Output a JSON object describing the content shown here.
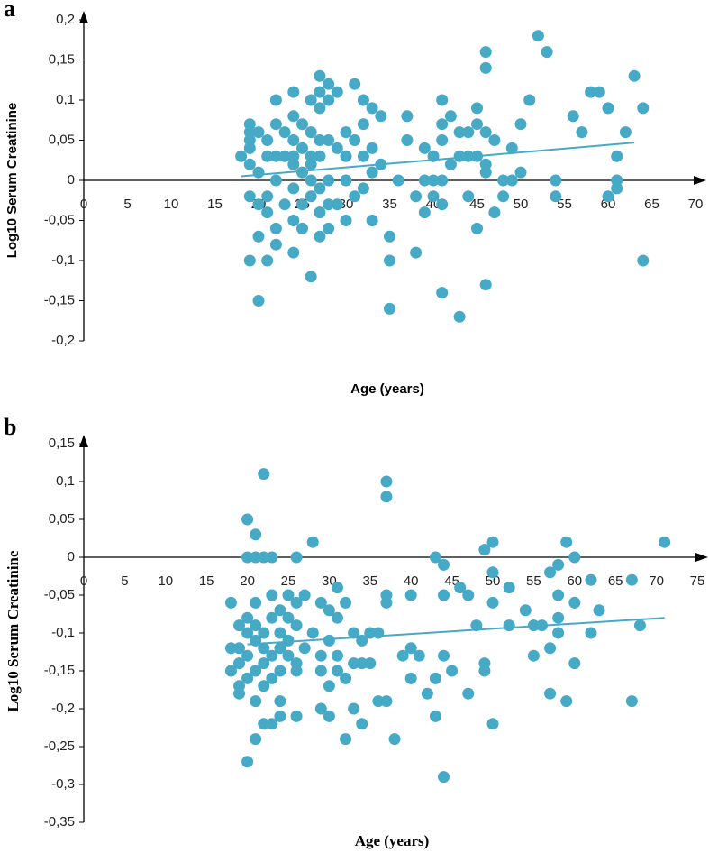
{
  "chart_data": [
    {
      "type": "scatter",
      "panel_label": "a",
      "x_label": "Age (years)",
      "y_label": "Log10 Serum Creatinine",
      "color": "#46a9c6",
      "x": [
        18,
        19,
        19,
        19,
        19,
        19,
        19,
        19,
        20,
        20,
        20,
        20,
        20,
        21,
        21,
        21,
        21,
        21,
        22,
        22,
        22,
        22,
        22,
        22,
        23,
        23,
        23,
        24,
        24,
        24,
        24,
        24,
        24,
        24,
        24,
        25,
        25,
        25,
        25,
        25,
        26,
        26,
        26,
        26,
        26,
        26,
        26,
        27,
        27,
        27,
        27,
        27,
        27,
        27,
        27,
        28,
        28,
        28,
        28,
        28,
        28,
        29,
        29,
        29,
        30,
        30,
        30,
        30,
        31,
        31,
        31,
        32,
        32,
        32,
        32,
        33,
        33,
        33,
        33,
        34,
        34,
        35,
        35,
        35,
        36,
        37,
        37,
        38,
        38,
        39,
        39,
        39,
        40,
        40,
        40,
        41,
        41,
        41,
        41,
        41,
        41,
        42,
        42,
        43,
        43,
        43,
        44,
        44,
        44,
        45,
        45,
        45,
        45,
        46,
        46,
        46,
        46,
        46,
        46,
        47,
        47,
        48,
        48,
        49,
        49,
        50,
        50,
        51,
        52,
        53,
        54,
        54,
        56,
        57,
        58,
        59,
        60,
        60,
        61,
        61,
        61,
        62,
        63,
        64,
        64
      ],
      "values": [
        0.03,
        0.07,
        0.06,
        0.05,
        0.04,
        0.02,
        -0.02,
        -0.1,
        0.06,
        0.01,
        -0.03,
        -0.07,
        -0.15,
        0.05,
        0.03,
        -0.02,
        -0.04,
        -0.1,
        0.1,
        0.07,
        0.03,
        0,
        -0.06,
        -0.08,
        0.06,
        0.03,
        -0.03,
        0.11,
        0.08,
        0.05,
        0.03,
        0.02,
        -0.01,
        -0.05,
        -0.09,
        0.07,
        0.04,
        0.01,
        -0.03,
        -0.06,
        0.1,
        0.06,
        0.03,
        0.02,
        0,
        -0.02,
        -0.12,
        0.13,
        0.11,
        0.09,
        0.05,
        0.03,
        -0.01,
        -0.04,
        -0.07,
        0.12,
        0.1,
        0.05,
        0,
        -0.03,
        -0.06,
        0.11,
        0.04,
        -0.03,
        0.06,
        0.03,
        0,
        -0.05,
        0.12,
        0.05,
        -0.02,
        0.1,
        0.07,
        0.03,
        -0.01,
        0.09,
        0.04,
        0.01,
        -0.05,
        0.08,
        0.02,
        -0.07,
        -0.1,
        -0.16,
        0,
        0.08,
        0.05,
        -0.02,
        -0.09,
        0.04,
        0,
        -0.04,
        0.03,
        0,
        -0.02,
        0.1,
        0.07,
        0.05,
        0,
        -0.03,
        -0.14,
        0.08,
        0.02,
        -0.17,
        0.06,
        0.03,
        0.06,
        0.03,
        -0.02,
        0.09,
        0.07,
        0.03,
        -0.06,
        0.16,
        0.14,
        0.06,
        0.02,
        0.01,
        -0.13,
        0.05,
        -0.04,
        0,
        -0.02,
        0.04,
        0,
        0.07,
        0.01,
        0.1,
        0.18,
        0.16,
        0,
        -0.02,
        0.08,
        0.06,
        0.11,
        0.11,
        0.09,
        -0.02,
        0.03,
        0,
        -0.01,
        0.06,
        0.13,
        0.09,
        -0.1
      ],
      "trendline": {
        "x": [
          18,
          63
        ],
        "y": [
          0.005,
          0.047
        ]
      },
      "xlim": [
        0,
        70
      ],
      "ylim": [
        -0.2,
        0.2
      ],
      "xticks": [
        0,
        5,
        10,
        15,
        20,
        25,
        30,
        35,
        40,
        45,
        50,
        55,
        60,
        65,
        70
      ],
      "yticks": [
        {
          "value": 0.2,
          "label": "0,2"
        },
        {
          "value": 0.15,
          "label": "0,15"
        },
        {
          "value": 0.1,
          "label": "0,1"
        },
        {
          "value": 0.05,
          "label": "0,05"
        },
        0,
        {
          "value": -0.05,
          "label": "-0,05"
        },
        {
          "value": -0.1,
          "label": "-0,1"
        },
        {
          "value": -0.15,
          "label": "-0,15"
        },
        {
          "value": -0.2,
          "label": "-0,2"
        }
      ]
    },
    {
      "type": "scatter",
      "panel_label": "b",
      "x_label": "Age (years)",
      "y_label": "Log10 Serum Creatinine",
      "color": "#46a9c6",
      "x": [
        18,
        18,
        18,
        19,
        19,
        19,
        19,
        19,
        20,
        20,
        20,
        20,
        20,
        20,
        20,
        21,
        21,
        21,
        21,
        21,
        21,
        21,
        21,
        22,
        22,
        22,
        22,
        22,
        22,
        22,
        23,
        23,
        23,
        23,
        23,
        23,
        24,
        24,
        24,
        24,
        24,
        24,
        25,
        25,
        25,
        25,
        26,
        26,
        26,
        26,
        26,
        26,
        27,
        27,
        28,
        28,
        29,
        29,
        29,
        29,
        30,
        30,
        30,
        30,
        31,
        31,
        31,
        31,
        32,
        32,
        32,
        33,
        33,
        33,
        34,
        34,
        34,
        35,
        35,
        36,
        36,
        37,
        37,
        37,
        37,
        37,
        38,
        39,
        40,
        40,
        40,
        41,
        42,
        43,
        43,
        43,
        44,
        44,
        44,
        44,
        45,
        46,
        47,
        47,
        48,
        49,
        49,
        49,
        50,
        50,
        50,
        50,
        52,
        52,
        54,
        55,
        55,
        56,
        57,
        57,
        57,
        58,
        58,
        58,
        58,
        59,
        59,
        60,
        60,
        60,
        62,
        62,
        63,
        67,
        67,
        68,
        71
      ],
      "values": [
        -0.06,
        -0.12,
        -0.15,
        -0.09,
        -0.12,
        -0.14,
        -0.17,
        -0.18,
        -0.08,
        -0.1,
        -0.13,
        -0.16,
        0.05,
        0,
        -0.27,
        -0.06,
        -0.09,
        -0.11,
        -0.15,
        -0.19,
        0.03,
        0,
        -0.24,
        -0.1,
        -0.12,
        -0.14,
        -0.17,
        0.11,
        0,
        -0.22,
        -0.05,
        -0.08,
        -0.13,
        -0.16,
        0,
        -0.22,
        -0.07,
        -0.1,
        -0.12,
        -0.15,
        -0.19,
        -0.21,
        -0.05,
        -0.08,
        -0.11,
        -0.13,
        -0.06,
        -0.09,
        -0.14,
        -0.15,
        0,
        -0.21,
        -0.05,
        -0.12,
        -0.1,
        0.02,
        -0.06,
        -0.13,
        -0.15,
        -0.2,
        -0.07,
        -0.11,
        -0.17,
        -0.21,
        -0.04,
        -0.08,
        -0.13,
        -0.15,
        -0.06,
        -0.16,
        -0.24,
        -0.1,
        -0.14,
        -0.2,
        -0.11,
        -0.14,
        -0.22,
        -0.1,
        -0.14,
        -0.1,
        -0.19,
        0.1,
        0.08,
        -0.05,
        -0.06,
        -0.19,
        -0.24,
        -0.13,
        -0.05,
        -0.12,
        -0.16,
        -0.13,
        -0.18,
        0,
        -0.16,
        -0.21,
        -0.01,
        -0.05,
        -0.13,
        -0.29,
        -0.15,
        -0.04,
        -0.18,
        -0.05,
        -0.09,
        0.01,
        -0.14,
        -0.15,
        0.02,
        -0.02,
        -0.06,
        -0.22,
        -0.04,
        -0.09,
        -0.07,
        -0.09,
        -0.13,
        -0.09,
        -0.02,
        -0.12,
        -0.18,
        -0.01,
        -0.05,
        -0.08,
        -0.1,
        0.02,
        -0.19,
        0,
        -0.06,
        -0.14,
        -0.03,
        -0.1,
        -0.07,
        -0.03,
        -0.19,
        -0.09,
        0.02
      ],
      "trendline": {
        "x": [
          20,
          71
        ],
        "y": [
          -0.115,
          -0.08
        ]
      },
      "xlim": [
        0,
        75
      ],
      "ylim": [
        -0.35,
        0.15
      ],
      "xticks": [
        0,
        5,
        10,
        15,
        20,
        25,
        30,
        35,
        40,
        45,
        50,
        55,
        60,
        65,
        70,
        75
      ],
      "yticks": [
        {
          "value": 0.15,
          "label": "0,15"
        },
        {
          "value": 0.1,
          "label": "0,1"
        },
        {
          "value": 0.05,
          "label": "0,05"
        },
        0,
        {
          "value": -0.05,
          "label": "-0,05"
        },
        {
          "value": -0.1,
          "label": "-0,1"
        },
        {
          "value": -0.15,
          "label": "-0,15"
        },
        {
          "value": -0.2,
          "label": "-0,2"
        },
        {
          "value": -0.25,
          "label": "-0,25"
        },
        {
          "value": -0.3,
          "label": "-0,3"
        },
        {
          "value": -0.35,
          "label": "-0,35"
        }
      ]
    }
  ]
}
